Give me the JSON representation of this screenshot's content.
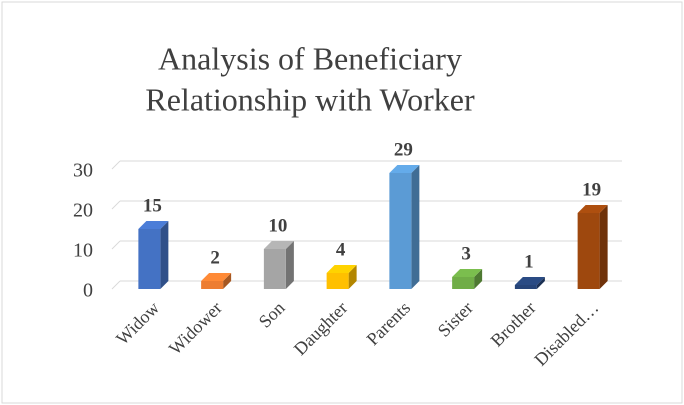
{
  "chart_data": {
    "type": "bar3d",
    "title": [
      "Analysis of Beneficiary",
      "Relationship with Worker"
    ],
    "categories": [
      "Widow",
      "Widower",
      "Son",
      "Daughter",
      "Parents",
      "Sister",
      "Brother",
      "Disabled…"
    ],
    "values": [
      15,
      2,
      10,
      4,
      29,
      3,
      1,
      19
    ],
    "colors": [
      "#4472c4",
      "#ed7d31",
      "#a5a5a5",
      "#ffc000",
      "#5b9bd5",
      "#70ad47",
      "#264478",
      "#9e480e"
    ],
    "ylim": [
      0,
      30
    ],
    "yticks": [
      0,
      10,
      20,
      30
    ],
    "grid": true
  }
}
